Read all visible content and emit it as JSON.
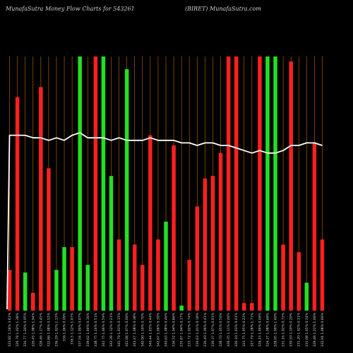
{
  "chart_data": {
    "type": "bar",
    "title": "MunafaSutra  Money Flow  Charts for 543261",
    "subtitle": "(BIRET) MunafaSutra.com",
    "colors": {
      "background": "#000000",
      "up": "#22e022",
      "down": "#ff1f1f",
      "line": "#ffffff",
      "gridline": "#c46a00"
    },
    "ylim": [
      0,
      100
    ],
    "categories": [
      "323.82 1.16% 3.61%",
      "326.78 1.02% 1.38%",
      "324.77 1.20% 0.05%",
      "326.45 1.08% 1.94%",
      "328.46 1.17% 0.45%",
      "332.86 1.08% 0.52%",
      "336.29 1.02% 1.15%",
      "336 1.06% 0.09%",
      "336.5 1.12% 1.07%",
      "337.54 1.00% 0.07%",
      "339.62 1.00% 0.16%",
      "338.75 1.16% 0.51%",
      "342.75 1.06% 0.59%",
      "343.28 1.12% 0.21%",
      "341.79 1.03% 0.15%",
      "341.68 1.07% 0.00%",
      "343.47 1.08% 0.38%",
      "340.90 1.19% 0.70%",
      "340.44 1.03% 0.44%",
      "342.67 1.06% 0.39%",
      "340.63 1.08% 0.46%",
      "336.52 1.04% 0.86%",
      "335.87 1.04% 0.17%",
      "333.72 1.02% 0.74%",
      "330.63 1.01% 0.18%",
      "330.40 1.06% 0.41%",
      "330.37 1.07% 0.01%",
      "328.70 1.05% 0.56%",
      "326.35 1.11% 0.46%",
      "326.10 1.03% 0.01%",
      "323.75 1.05% 0.22%",
      "327.79 1.38% 1.71%",
      "326.15 1.00% 0.09%",
      "324.27 1.08% 0.66%",
      "328.95 1.00% 1.60%",
      "331.16 1.02% 0.72%",
      "330.50 1.10% 0.20%",
      "331.20 1.02% 0.31%",
      "331.68 1.05% 0.34%",
      "329.48 1.22% 1.06%",
      "332.91 1.08% 0.66%"
    ],
    "series": [
      {
        "values": [
          16,
          84,
          15,
          7,
          88,
          56,
          16,
          25,
          25,
          100,
          18,
          100,
          100,
          53,
          28,
          95,
          26,
          18,
          69,
          28,
          35,
          65,
          2,
          20,
          41,
          52,
          53,
          62,
          100,
          100,
          3,
          3,
          100,
          100,
          100,
          26,
          98,
          23,
          11,
          66,
          28
        ],
        "directions": [
          "down",
          "down",
          "up",
          "down",
          "down",
          "down",
          "up",
          "up",
          "down",
          "up",
          "up",
          "down",
          "up",
          "up",
          "down",
          "up",
          "down",
          "down",
          "down",
          "down",
          "up",
          "down",
          "up",
          "down",
          "down",
          "down",
          "down",
          "down",
          "down",
          "down",
          "down",
          "down",
          "down",
          "up",
          "up",
          "down",
          "down",
          "down",
          "up",
          "down",
          "down"
        ]
      }
    ],
    "line": [
      69,
      69,
      69,
      68,
      68,
      67,
      68,
      67,
      69,
      70,
      68,
      68,
      68,
      67,
      68,
      67,
      67,
      67,
      68,
      67,
      67,
      67,
      66,
      66,
      65,
      66,
      66,
      65,
      65,
      64,
      63,
      62,
      63,
      62,
      62,
      63,
      65,
      65,
      66,
      66,
      65
    ]
  }
}
